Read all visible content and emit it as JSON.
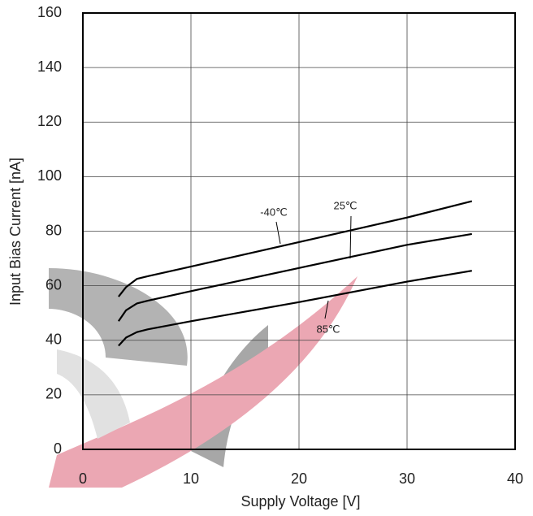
{
  "chart_data": {
    "type": "line",
    "x_label": "Supply Voltage  [V]",
    "y_label": "Input Bias Current [nA]",
    "x": [
      3.3,
      4,
      5,
      6,
      10,
      20,
      30,
      36
    ],
    "series": [
      {
        "name": "-40℃",
        "color": "#000000",
        "values": [
          56,
          59.5,
          62.5,
          63.5,
          67,
          76,
          85,
          91
        ]
      },
      {
        "name": "25℃",
        "color": "#000000",
        "values": [
          47,
          51,
          53.5,
          54.5,
          58,
          66.5,
          75,
          79
        ]
      },
      {
        "name": "85℃",
        "color": "#000000",
        "values": [
          38,
          41,
          43,
          44,
          47,
          54,
          61.5,
          65.5
        ]
      }
    ],
    "xlim": [
      0,
      40
    ],
    "xticks": [
      0,
      10,
      20,
      30,
      40
    ],
    "ylim": [
      0,
      160
    ],
    "yticks": [
      0,
      20,
      40,
      60,
      80,
      100,
      120,
      140,
      160
    ],
    "grid": true
  }
}
